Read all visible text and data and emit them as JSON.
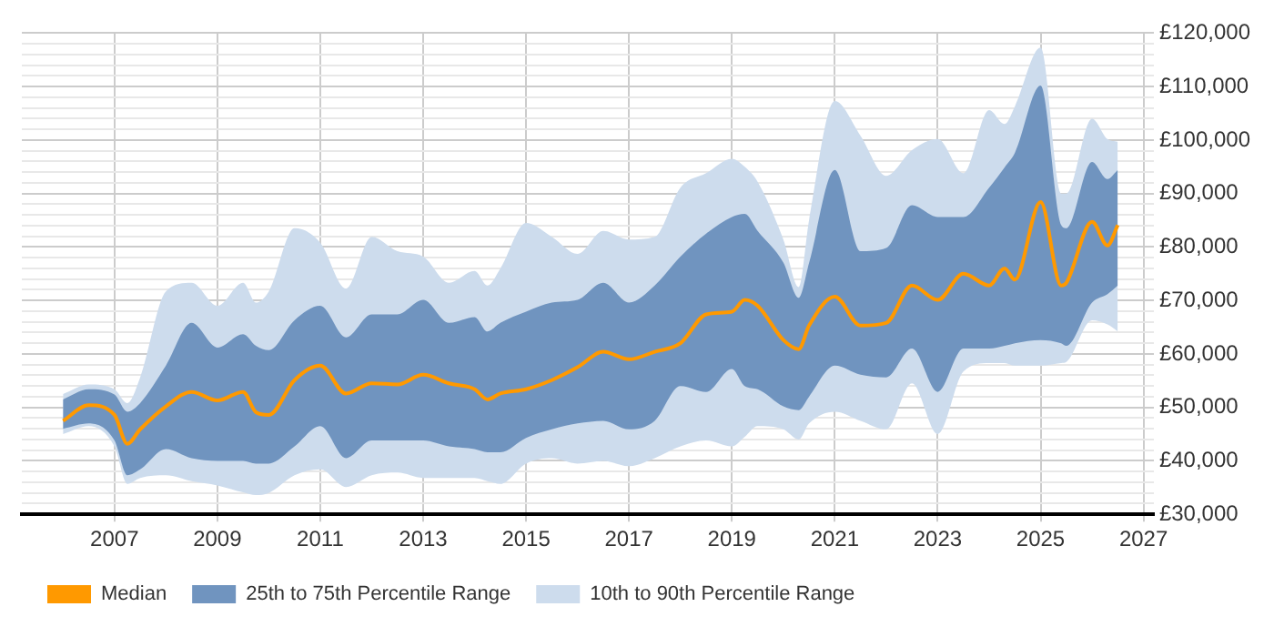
{
  "chart_data": {
    "type": "line",
    "x": [
      2006.0,
      2006.5,
      2007.0,
      2007.25,
      2007.5,
      2008.0,
      2008.5,
      2009.0,
      2009.5,
      2009.75,
      2010.0,
      2010.5,
      2011.0,
      2011.5,
      2012.0,
      2012.5,
      2013.0,
      2013.5,
      2014.0,
      2014.25,
      2014.5,
      2015.0,
      2015.5,
      2016.0,
      2016.5,
      2017.0,
      2017.5,
      2018.0,
      2018.5,
      2019.0,
      2019.25,
      2019.5,
      2020.0,
      2020.3,
      2020.5,
      2021.0,
      2021.5,
      2022.0,
      2022.5,
      2023.0,
      2023.5,
      2024.0,
      2024.3,
      2024.5,
      2025.0,
      2025.4,
      2025.5,
      2026.0,
      2026.3,
      2026.5
    ],
    "series": [
      {
        "name": "Median",
        "type": "line",
        "color": "#ff9900",
        "values": [
          47500,
          50400,
          48600,
          43200,
          45900,
          50200,
          52900,
          51300,
          52900,
          49100,
          48600,
          55100,
          57800,
          52600,
          54500,
          54300,
          56100,
          54500,
          53400,
          51500,
          52600,
          53400,
          55100,
          57500,
          60400,
          59000,
          60400,
          62000,
          67400,
          67900,
          70100,
          69000,
          62600,
          60900,
          65300,
          70700,
          65300,
          65800,
          72800,
          70100,
          75000,
          72800,
          76000,
          73900,
          88400,
          72800,
          73300,
          84700,
          80300,
          84100
        ]
      },
      {
        "name": "25th to 75th Percentile Range",
        "type": "line",
        "color": "#7094bf",
        "values": [
          null,
          null,
          null,
          null,
          null,
          null,
          null,
          null,
          null,
          null,
          null,
          null,
          null,
          null,
          null,
          null,
          null,
          null,
          null,
          null,
          null,
          null,
          null,
          null,
          null,
          null,
          null,
          null,
          null,
          null,
          null,
          null,
          null,
          null,
          null,
          null,
          null,
          null,
          null,
          null,
          null,
          null,
          null,
          null,
          null,
          null,
          null,
          null,
          null,
          null
        ],
        "lower": [
          46000,
          47000,
          43800,
          37300,
          38400,
          42200,
          40500,
          40000,
          40000,
          39500,
          39500,
          42700,
          46500,
          40500,
          43800,
          43800,
          43800,
          42700,
          42200,
          41600,
          41600,
          44300,
          45900,
          47000,
          47500,
          45900,
          47500,
          54000,
          52900,
          57200,
          54000,
          53400,
          50200,
          49500,
          52000,
          57800,
          56100,
          55600,
          61000,
          52900,
          61000,
          61000,
          61500,
          62000,
          62600,
          62000,
          61500,
          69600,
          71200,
          72800
        ],
        "upper": [
          51500,
          53400,
          52400,
          49200,
          50800,
          57800,
          65800,
          61200,
          63700,
          61500,
          60700,
          66300,
          69000,
          63100,
          67400,
          67400,
          70100,
          65800,
          66900,
          64200,
          65800,
          67900,
          69600,
          70100,
          73300,
          69600,
          72800,
          78200,
          82500,
          85600,
          86200,
          83000,
          77100,
          70500,
          77000,
          94400,
          79200,
          79800,
          87800,
          85600,
          85600,
          91100,
          94900,
          97600,
          110200,
          84100,
          83500,
          95900,
          92700,
          94400
        ]
      },
      {
        "name": "10th to 90th Percentile Range",
        "type": "line",
        "color": "#cddced",
        "values": [
          null,
          null,
          null,
          null,
          null,
          null,
          null,
          null,
          null,
          null,
          null,
          null,
          null,
          null,
          null,
          null,
          null,
          null,
          null,
          null,
          null,
          null,
          null,
          null,
          null,
          null,
          null,
          null,
          null,
          null,
          null,
          null,
          null,
          null,
          null,
          null,
          null,
          null,
          null,
          null,
          null,
          null,
          null,
          null,
          null,
          null,
          null,
          null,
          null,
          null
        ],
        "lower": [
          45000,
          46500,
          42700,
          35700,
          36800,
          37300,
          36200,
          35400,
          34100,
          33600,
          34000,
          37300,
          38400,
          35100,
          37300,
          37800,
          36800,
          36800,
          36800,
          36200,
          35700,
          39500,
          40500,
          39500,
          40000,
          39000,
          40500,
          42700,
          43800,
          42700,
          44500,
          46500,
          45900,
          44000,
          47000,
          49200,
          47500,
          45900,
          54500,
          45000,
          56700,
          58300,
          58300,
          57800,
          57800,
          58300,
          58500,
          66300,
          65500,
          64200
        ],
        "upper": [
          52500,
          54300,
          53400,
          50800,
          55600,
          71700,
          73300,
          69000,
          73300,
          69600,
          71700,
          83500,
          80800,
          72200,
          81900,
          79200,
          78200,
          73300,
          75500,
          72800,
          76000,
          84500,
          81900,
          78700,
          83000,
          81400,
          81900,
          91100,
          93800,
          96500,
          95000,
          92200,
          81400,
          72500,
          85000,
          107300,
          100800,
          93300,
          98100,
          100200,
          93800,
          105600,
          103000,
          106300,
          117300,
          90000,
          90000,
          104000,
          100200,
          99700
        ]
      }
    ],
    "xlim": [
      2005.2,
      2027.2
    ],
    "xticks": [
      2007,
      2009,
      2011,
      2013,
      2015,
      2017,
      2019,
      2021,
      2023,
      2025,
      2027
    ],
    "ylim": [
      30000,
      120000
    ],
    "yticks": [
      {
        "value": 30000,
        "label": "£30,000"
      },
      {
        "value": 32000,
        "label": null
      },
      {
        "value": 34000,
        "label": null
      },
      {
        "value": 36000,
        "label": null
      },
      {
        "value": 38000,
        "label": null
      },
      {
        "value": 40000,
        "label": "£40,000"
      },
      {
        "value": 42000,
        "label": null
      },
      {
        "value": 44000,
        "label": null
      },
      {
        "value": 46000,
        "label": null
      },
      {
        "value": 48000,
        "label": null
      },
      {
        "value": 50000,
        "label": "£50,000"
      },
      {
        "value": 52000,
        "label": null
      },
      {
        "value": 54000,
        "label": null
      },
      {
        "value": 56000,
        "label": null
      },
      {
        "value": 58000,
        "label": null
      },
      {
        "value": 60000,
        "label": "£60,000"
      },
      {
        "value": 62000,
        "label": null
      },
      {
        "value": 64000,
        "label": null
      },
      {
        "value": 66000,
        "label": null
      },
      {
        "value": 68000,
        "label": null
      },
      {
        "value": 70000,
        "label": "£70,000"
      },
      {
        "value": 72000,
        "label": null
      },
      {
        "value": 74000,
        "label": null
      },
      {
        "value": 76000,
        "label": null
      },
      {
        "value": 78000,
        "label": null
      },
      {
        "value": 80000,
        "label": "£80,000"
      },
      {
        "value": 82000,
        "label": null
      },
      {
        "value": 84000,
        "label": null
      },
      {
        "value": 86000,
        "label": null
      },
      {
        "value": 88000,
        "label": null
      },
      {
        "value": 90000,
        "label": "£90,000"
      },
      {
        "value": 92000,
        "label": null
      },
      {
        "value": 94000,
        "label": null
      },
      {
        "value": 96000,
        "label": null
      },
      {
        "value": 98000,
        "label": null
      },
      {
        "value": 100000,
        "label": "£100,000"
      },
      {
        "value": 102000,
        "label": null
      },
      {
        "value": 104000,
        "label": null
      },
      {
        "value": 106000,
        "label": null
      },
      {
        "value": 108000,
        "label": null
      },
      {
        "value": 110000,
        "label": "£110,000"
      },
      {
        "value": 112000,
        "label": null
      },
      {
        "value": 114000,
        "label": null
      },
      {
        "value": 116000,
        "label": null
      },
      {
        "value": 118000,
        "label": null
      },
      {
        "value": 120000,
        "label": "£120,000"
      }
    ],
    "grid": true,
    "legend": "bottom left",
    "marker": "none"
  }
}
